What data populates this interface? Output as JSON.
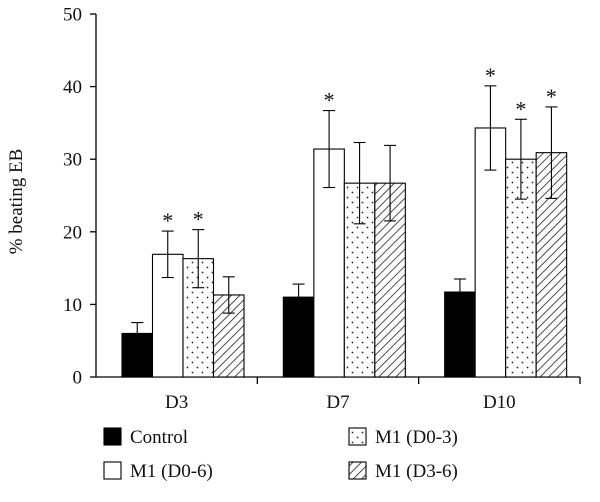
{
  "chart_data": {
    "type": "bar",
    "title": "",
    "xlabel": "",
    "ylabel": "% beating EB",
    "ylim": [
      0,
      50
    ],
    "yticks": [
      0,
      10,
      20,
      30,
      40,
      50
    ],
    "grid": false,
    "legend_position": "bottom",
    "categories": [
      "D3",
      "D7",
      "D10"
    ],
    "series": [
      {
        "name": "Control",
        "pattern": "solid-black",
        "values": [
          6.0,
          11.0,
          11.7
        ],
        "errors": [
          1.5,
          1.8,
          1.8
        ],
        "significant": [
          false,
          false,
          false
        ]
      },
      {
        "name": "M1 (D0-6)",
        "pattern": "white",
        "values": [
          16.9,
          31.4,
          34.3
        ],
        "errors": [
          3.2,
          5.3,
          5.8
        ],
        "significant": [
          true,
          true,
          true
        ]
      },
      {
        "name": "M1 (D0-3)",
        "pattern": "dotted",
        "values": [
          16.3,
          26.7,
          30.0
        ],
        "errors": [
          4.0,
          5.6,
          5.5
        ],
        "significant": [
          true,
          false,
          true
        ]
      },
      {
        "name": "M1 (D3-6)",
        "pattern": "hatched",
        "values": [
          11.3,
          26.7,
          30.9
        ],
        "errors": [
          2.5,
          5.2,
          6.3
        ],
        "significant": [
          false,
          false,
          true
        ]
      }
    ],
    "significance_marker": "*"
  }
}
